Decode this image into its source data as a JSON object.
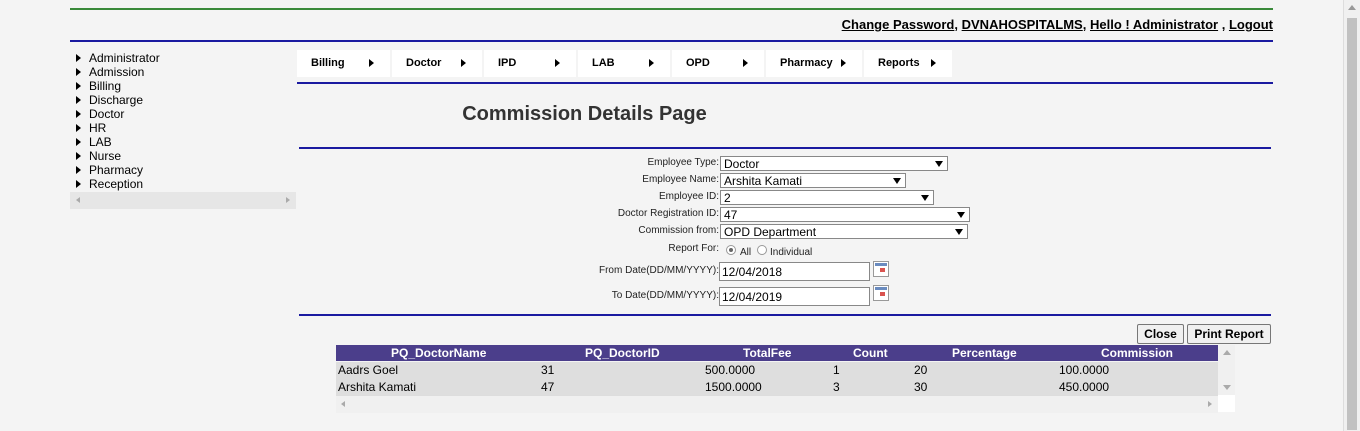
{
  "header": {
    "change_password": "Change Password",
    "sep1": ",",
    "hospital": "DVNAHOSPITALMS",
    "sep2": ",",
    "greeting": "Hello ! Administrator",
    "sep3": ",",
    "logout": "Logout"
  },
  "sidebar": {
    "items": [
      {
        "label": "Administrator"
      },
      {
        "label": "Admission"
      },
      {
        "label": "Billing"
      },
      {
        "label": "Discharge"
      },
      {
        "label": "Doctor"
      },
      {
        "label": "HR"
      },
      {
        "label": "LAB"
      },
      {
        "label": "Nurse"
      },
      {
        "label": "Pharmacy"
      },
      {
        "label": "Reception"
      }
    ]
  },
  "menu": {
    "items": [
      {
        "label": "Billing"
      },
      {
        "label": "Doctor"
      },
      {
        "label": "IPD"
      },
      {
        "label": "LAB"
      },
      {
        "label": "OPD"
      },
      {
        "label": "Pharmacy"
      },
      {
        "label": "Reports"
      }
    ]
  },
  "page_title": "Commission Details Page",
  "form": {
    "employee_type_label": "Employee Type:",
    "employee_type_value": "Doctor",
    "employee_name_label": "Employee Name:",
    "employee_name_value": "Arshita Kamati",
    "employee_id_label": "Employee ID:",
    "employee_id_value": "2",
    "doctor_reg_label": "Doctor Registration ID:",
    "doctor_reg_value": "47",
    "commission_from_label": "Commission from:",
    "commission_from_value": "OPD Department",
    "report_for_label": "Report For:",
    "report_for_all": "All",
    "report_for_individual": "Individual",
    "report_for_selected": "All",
    "from_date_label": "From Date(DD/MM/YYYY):",
    "from_date_value": "12/04/2018",
    "to_date_label": "To Date(DD/MM/YYYY):",
    "to_date_value": "12/04/2019"
  },
  "buttons": {
    "close": "Close",
    "print_report": "Print Report"
  },
  "grid": {
    "columns": [
      "PQ_DoctorName",
      "PQ_DoctorID",
      "TotalFee",
      "Count",
      "Percentage",
      "Commission"
    ],
    "rows": [
      [
        "Aadrs Goel",
        "31",
        "500.0000",
        "1",
        "20",
        "100.0000"
      ],
      [
        "Arshita Kamati",
        "47",
        "1500.0000",
        "3",
        "30",
        "450.0000"
      ]
    ]
  }
}
